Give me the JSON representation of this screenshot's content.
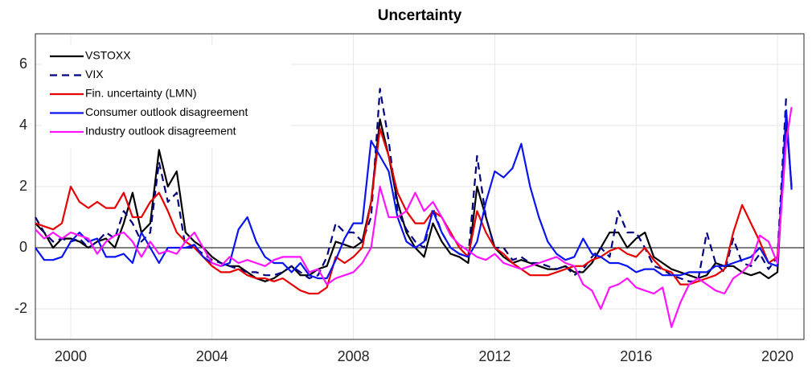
{
  "chart_data": {
    "type": "line",
    "title": "Uncertainty",
    "x": [
      1999.0,
      1999.25,
      1999.5,
      1999.75,
      2000.0,
      2000.25,
      2000.5,
      2000.75,
      2001.0,
      2001.25,
      2001.5,
      2001.75,
      2002.0,
      2002.25,
      2002.5,
      2002.75,
      2003.0,
      2003.25,
      2003.5,
      2003.75,
      2004.0,
      2004.25,
      2004.5,
      2004.75,
      2005.0,
      2005.25,
      2005.5,
      2005.75,
      2006.0,
      2006.25,
      2006.5,
      2006.75,
      2007.0,
      2007.25,
      2007.5,
      2007.75,
      2008.0,
      2008.25,
      2008.5,
      2008.75,
      2009.0,
      2009.25,
      2009.5,
      2009.75,
      2010.0,
      2010.25,
      2010.5,
      2010.75,
      2011.0,
      2011.25,
      2011.5,
      2011.75,
      2012.0,
      2012.25,
      2012.5,
      2012.75,
      2013.0,
      2013.25,
      2013.5,
      2013.75,
      2014.0,
      2014.25,
      2014.5,
      2014.75,
      2015.0,
      2015.25,
      2015.5,
      2015.75,
      2016.0,
      2016.25,
      2016.5,
      2016.75,
      2017.0,
      2017.25,
      2017.5,
      2017.75,
      2018.0,
      2018.25,
      2018.5,
      2018.75,
      2019.0,
      2019.25,
      2019.5,
      2019.75,
      2020.0,
      2020.25,
      2020.4
    ],
    "series": [
      {
        "name": "VSTOXX",
        "color": "#000000",
        "dash": false,
        "values": [
          0.8,
          0.5,
          0,
          0.3,
          0.3,
          0.2,
          0,
          0.2,
          0.3,
          0,
          0.8,
          1.8,
          0.5,
          0.8,
          3.2,
          2.0,
          2.5,
          0.5,
          0.2,
          0,
          -0.3,
          -0.5,
          -0.6,
          -0.6,
          -0.8,
          -1.0,
          -1.1,
          -1.0,
          -0.8,
          -0.6,
          -0.9,
          -0.9,
          -0.7,
          -0.6,
          0.2,
          0.1,
          0,
          0.2,
          1.5,
          4.2,
          3.0,
          1.5,
          0.5,
          0,
          -0.3,
          0.8,
          0.2,
          -0.2,
          -0.3,
          -0.5,
          2.0,
          1.0,
          0,
          -0.3,
          -0.5,
          -0.4,
          -0.5,
          -0.6,
          -0.7,
          -0.7,
          -0.6,
          -0.8,
          -0.8,
          -0.5,
          0,
          0.5,
          0.5,
          0,
          0.3,
          0.5,
          -0.3,
          -0.5,
          -0.7,
          -0.8,
          -0.9,
          -1.0,
          -0.9,
          -0.5,
          -0.6,
          -0.6,
          -0.8,
          -0.9,
          -0.8,
          -1.0,
          -0.8,
          4.2,
          2.0
        ]
      },
      {
        "name": "VIX",
        "color": "#000080",
        "dash": true,
        "values": [
          1.0,
          0.5,
          0.2,
          0.3,
          0.2,
          0.3,
          0,
          0.2,
          0.5,
          0.3,
          1.2,
          0.8,
          0.2,
          0.5,
          2.8,
          1.5,
          1.8,
          0,
          0,
          -0.2,
          -0.4,
          -0.5,
          -0.6,
          -0.7,
          -0.8,
          -0.8,
          -0.9,
          -0.9,
          -0.8,
          -0.6,
          -0.8,
          -1.0,
          -0.9,
          -0.3,
          0.8,
          0.5,
          0.5,
          0.2,
          1.0,
          5.2,
          3.5,
          1.2,
          0.6,
          0.2,
          0,
          1.3,
          0.5,
          0,
          -0.2,
          -0.3,
          3.0,
          1.0,
          0,
          0,
          -0.4,
          -0.3,
          -0.5,
          -0.5,
          -0.6,
          -0.7,
          -0.6,
          -0.9,
          -0.7,
          -0.3,
          0,
          -0.3,
          1.2,
          0.5,
          0.5,
          0,
          -0.6,
          -0.7,
          -0.9,
          -1.0,
          -1.1,
          -1.1,
          0.5,
          -0.5,
          -0.8,
          0.3,
          -0.5,
          -0.6,
          -0.2,
          -0.7,
          -0.3,
          5.0,
          null
        ]
      },
      {
        "name": "Fin. uncertainty (LMN)",
        "color": "#e60000",
        "dash": false,
        "values": [
          0.8,
          0.7,
          0.6,
          0.8,
          2.0,
          1.5,
          1.3,
          1.5,
          1.3,
          1.3,
          1.8,
          1.0,
          1.0,
          1.5,
          1.8,
          1.2,
          0.5,
          0.2,
          0,
          -0.3,
          -0.6,
          -0.8,
          -0.8,
          -0.7,
          -0.9,
          -1.0,
          -1.0,
          -1.1,
          -1.0,
          -1.2,
          -1.4,
          -1.5,
          -1.5,
          -1.3,
          -0.3,
          -0.5,
          -0.3,
          0,
          1.5,
          3.9,
          3.0,
          1.8,
          1.2,
          0.8,
          0.8,
          1.2,
          1.0,
          0.5,
          0,
          -0.3,
          1.2,
          0.5,
          0,
          -0.2,
          -0.5,
          -0.7,
          -0.9,
          -0.9,
          -0.9,
          -0.8,
          -0.7,
          -0.6,
          -0.6,
          -0.4,
          -0.3,
          -0.1,
          0,
          -0.2,
          -0.3,
          0,
          -0.4,
          -0.7,
          -0.8,
          -1.2,
          -1.2,
          -1.1,
          -1.0,
          -0.9,
          -0.7,
          0.5,
          1.4,
          0.8,
          0.2,
          -0.5,
          -0.3,
          3.8,
          null
        ]
      },
      {
        "name": "Consumer outlook disagreement",
        "color": "#0a14f0",
        "dash": false,
        "values": [
          0,
          -0.4,
          -0.4,
          -0.3,
          0.2,
          0.5,
          0.2,
          0.3,
          -0.3,
          -0.3,
          -0.2,
          -0.5,
          0.5,
          0,
          -0.5,
          0,
          0,
          0,
          0.1,
          -0.3,
          -0.5,
          -0.6,
          -0.5,
          0.6,
          1.0,
          0.2,
          -0.3,
          -0.5,
          -0.5,
          -0.8,
          -0.5,
          -0.9,
          -1.0,
          -1.0,
          -0.4,
          0.3,
          0.8,
          0.8,
          3.5,
          3.0,
          2.5,
          1.0,
          0.2,
          0,
          0.2,
          1.2,
          0.5,
          0,
          -0.2,
          -0.3,
          0.2,
          1.5,
          2.5,
          2.3,
          2.6,
          3.4,
          2.0,
          1.0,
          0.2,
          -0.2,
          -0.4,
          -0.3,
          0.3,
          -0.2,
          -0.3,
          -0.5,
          -0.5,
          -0.6,
          -0.8,
          -0.7,
          -0.7,
          -0.9,
          -0.9,
          -0.9,
          -0.8,
          -0.8,
          -0.8,
          -0.6,
          -0.6,
          -0.5,
          -0.4,
          -0.3,
          0,
          -0.5,
          -0.6,
          4.5,
          1.9
        ]
      },
      {
        "name": "Industry outlook disagreement",
        "color": "#ff14ff",
        "dash": false,
        "values": [
          0.6,
          0.3,
          0.5,
          0.3,
          0.5,
          0.4,
          0.3,
          -0.2,
          0.2,
          0.4,
          0.5,
          0.2,
          -0.3,
          0.2,
          -0.2,
          -0.1,
          -0.2,
          0.2,
          0.5,
          0,
          -0.5,
          -0.6,
          -0.3,
          -0.5,
          -0.4,
          -0.5,
          -0.6,
          -0.4,
          -0.3,
          -0.3,
          -0.3,
          -0.8,
          -0.7,
          -1.2,
          -1.0,
          -0.9,
          -0.8,
          -0.5,
          0,
          2.0,
          1.0,
          1.0,
          1.2,
          1.8,
          1.2,
          1.5,
          1.0,
          0.4,
          0.1,
          -0.1,
          -0.3,
          -0.4,
          -0.2,
          -0.5,
          -0.6,
          -0.7,
          -0.6,
          -0.5,
          -0.4,
          -0.3,
          -0.5,
          -0.6,
          -1.2,
          -1.4,
          -2.0,
          -1.3,
          -1.2,
          -1.0,
          -1.3,
          -1.4,
          -1.5,
          -1.3,
          -2.6,
          -1.8,
          -1.2,
          -1.0,
          -1.2,
          -1.4,
          -1.5,
          -1.0,
          -0.8,
          -0.5,
          0.4,
          0.2,
          -0.5,
          3.5,
          4.6
        ]
      }
    ],
    "xlim": [
      1999,
      2020.75
    ],
    "xticks": [
      2000,
      2004,
      2008,
      2012,
      2016,
      2020
    ],
    "ylim": [
      -3,
      7
    ],
    "yticks": [
      -2,
      0,
      2,
      4,
      6
    ],
    "grid": true,
    "zero_line": true,
    "legend": "upper-left"
  }
}
